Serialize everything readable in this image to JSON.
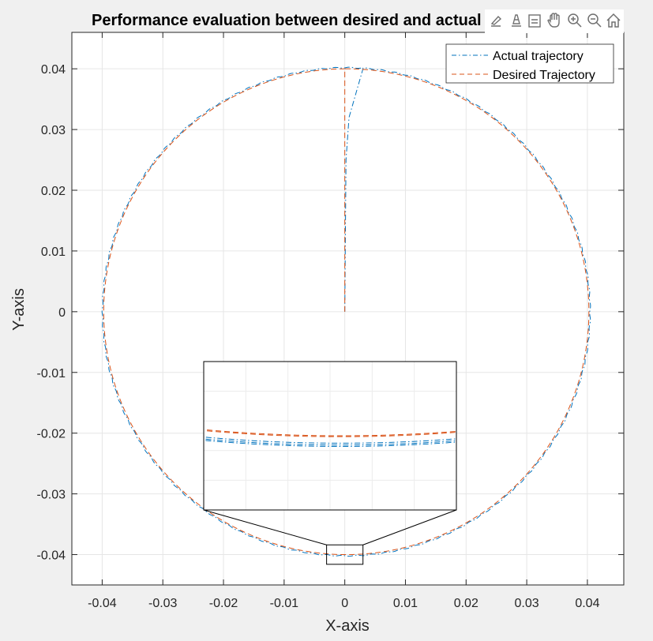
{
  "chart_data": {
    "type": "line",
    "title": "Performance evaluation between desired and actual trajectory",
    "xlabel": "X-axis",
    "ylabel": "Y-axis",
    "xlim": [
      -0.045,
      0.046
    ],
    "ylim": [
      -0.045,
      0.046
    ],
    "x_ticks": [
      -0.04,
      -0.03,
      -0.02,
      -0.01,
      0,
      0.01,
      0.02,
      0.03,
      0.04
    ],
    "y_ticks": [
      -0.04,
      -0.03,
      -0.02,
      -0.01,
      0,
      0.01,
      0.02,
      0.03,
      0.04
    ],
    "x_tick_labels": [
      "-0.04",
      "-0.03",
      "-0.02",
      "-0.01",
      "0",
      "0.01",
      "0.02",
      "0.03",
      "0.04"
    ],
    "y_tick_labels": [
      "-0.04",
      "-0.03",
      "-0.02",
      "-0.01",
      "0",
      "0.01",
      "0.02",
      "0.03",
      "0.04"
    ],
    "grid": true,
    "legend_position": "top-right",
    "series": [
      {
        "name": "Actual trajectory",
        "color": "#0072BD",
        "line_style": "dash-dot",
        "shape": "approach then circle",
        "approach_points": [
          [
            0,
            0
          ],
          [
            0.0002,
            0.025
          ],
          [
            0.0007,
            0.032
          ],
          [
            0.003,
            0.04
          ]
        ],
        "circle_center": [
          0.00025,
          0.0
        ],
        "circle_radius": 0.0402
      },
      {
        "name": "Desired Trajectory",
        "color": "#D95319",
        "line_style": "dashed",
        "shape": "approach then circle",
        "approach_points": [
          [
            0,
            0
          ],
          [
            0,
            0.04
          ]
        ],
        "circle_center": [
          0.00025,
          0.0
        ],
        "circle_radius": 0.04
      }
    ],
    "inset": {
      "zoom_region": {
        "xlim": [
          -0.003,
          0.003
        ],
        "ylim": [
          -0.0416,
          -0.0384
        ]
      },
      "position": "lower-center"
    }
  },
  "toolbar": {
    "icons": [
      "brush-icon",
      "data-tips-icon",
      "link-icon",
      "pan-icon",
      "zoom-in-icon",
      "zoom-out-icon",
      "home-icon"
    ]
  }
}
